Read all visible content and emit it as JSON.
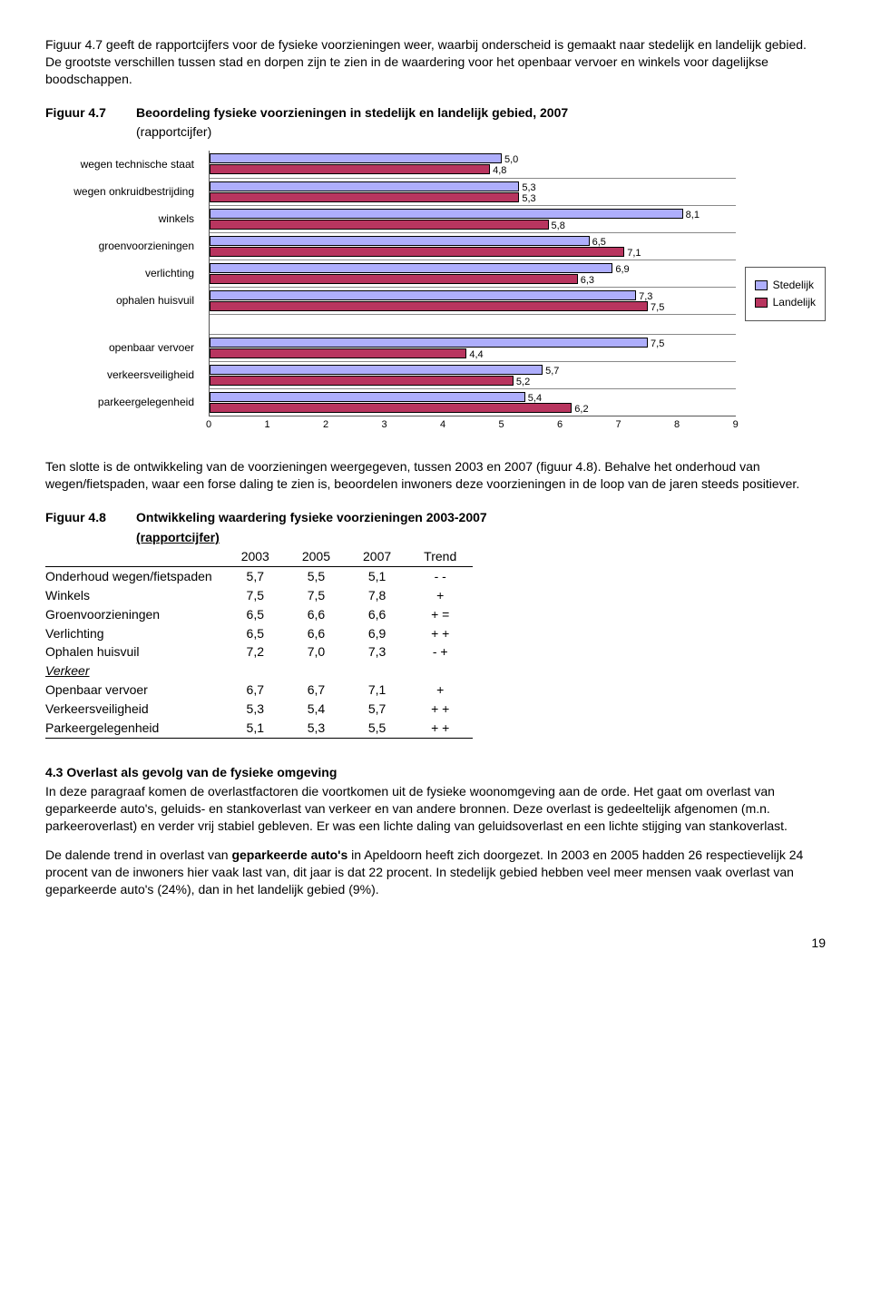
{
  "intro_para": "Figuur 4.7 geeft de rapportcijfers voor de fysieke voorzieningen weer, waarbij onderscheid is gemaakt naar stedelijk en landelijk gebied. De grootste verschillen tussen stad en dorpen zijn te zien in de waardering voor het openbaar vervoer en winkels voor dagelijkse boodschappen.",
  "fig47": {
    "num": "Figuur 4.7",
    "title": "Beoordeling fysieke voorzieningen in stedelijk en landelijk gebied, 2007",
    "sub": "(rapportcijfer)",
    "xmax": 9,
    "xticks": [
      0,
      1,
      2,
      3,
      4,
      5,
      6,
      7,
      8,
      9
    ],
    "colors": {
      "stedelijk": "#aeaefc",
      "landelijk": "#b8355f"
    },
    "legend": {
      "stedelijk": "Stedelijk",
      "landelijk": "Landelijk"
    },
    "group1": [
      {
        "label": "wegen technische staat",
        "s": 5.0,
        "l": 4.8,
        "s_txt": "5,0",
        "l_txt": "4,8"
      },
      {
        "label": "wegen onkruidbestrijding",
        "s": 5.3,
        "l": 5.3,
        "s_txt": "5,3",
        "l_txt": "5,3"
      },
      {
        "label": "winkels",
        "s": 8.1,
        "l": 5.8,
        "s_txt": "8,1",
        "l_txt": "5,8"
      },
      {
        "label": "groenvoorzieningen",
        "s": 6.5,
        "l": 7.1,
        "s_txt": "6,5",
        "l_txt": "7,1"
      },
      {
        "label": "verlichting",
        "s": 6.9,
        "l": 6.3,
        "s_txt": "6,9",
        "l_txt": "6,3"
      },
      {
        "label": "ophalen huisvuil",
        "s": 7.3,
        "l": 7.5,
        "s_txt": "7,3",
        "l_txt": "7,5"
      }
    ],
    "group2": [
      {
        "label": "openbaar vervoer",
        "s": 7.5,
        "l": 4.4,
        "s_txt": "7,5",
        "l_txt": "4,4"
      },
      {
        "label": "verkeersveiligheid",
        "s": 5.7,
        "l": 5.2,
        "s_txt": "5,7",
        "l_txt": "5,2"
      },
      {
        "label": "parkeergelegenheid",
        "s": 5.4,
        "l": 6.2,
        "s_txt": "5,4",
        "l_txt": "6,2"
      }
    ]
  },
  "mid_para": "Ten slotte is de ontwikkeling van de voorzieningen weergegeven, tussen 2003 en 2007 (figuur 4.8). Behalve het onderhoud van wegen/fietspaden, waar een forse daling te zien is, beoordelen inwoners deze voorzieningen in de loop van de jaren steeds positiever.",
  "fig48": {
    "num": "Figuur 4.8",
    "title": "Ontwikkeling waardering fysieke voorzieningen 2003-2007",
    "sub": "(rapportcijfer)",
    "cols": [
      "",
      "2003",
      "2005",
      "2007",
      "Trend"
    ],
    "rows": [
      [
        "Onderhoud wegen/fietspaden",
        "5,7",
        "5,5",
        "5,1",
        "- -"
      ],
      [
        "Winkels",
        "7,5",
        "7,5",
        "7,8",
        "+"
      ],
      [
        "Groenvoorzieningen",
        "6,5",
        "6,6",
        "6,6",
        "+ ="
      ],
      [
        "Verlichting",
        "6,5",
        "6,6",
        "6,9",
        "+ +"
      ],
      [
        "Ophalen huisvuil",
        "7,2",
        "7,0",
        "7,3",
        "- +"
      ]
    ],
    "section_label": "Verkeer",
    "rows2": [
      [
        "Openbaar vervoer",
        "6,7",
        "6,7",
        "7,1",
        "+"
      ],
      [
        "Verkeersveiligheid",
        "5,3",
        "5,4",
        "5,7",
        "+ +"
      ],
      [
        "Parkeergelegenheid",
        "5,1",
        "5,3",
        "5,5",
        "+ +"
      ]
    ]
  },
  "sec43": {
    "head": "4.3 Overlast als gevolg van de fysieke omgeving",
    "p1": "In deze paragraaf komen de overlastfactoren die voortkomen uit de fysieke woonomgeving aan de orde. Het gaat om overlast van geparkeerde auto's, geluids- en stankoverlast van verkeer en van andere bronnen. Deze overlast is gedeeltelijk afgenomen (m.n. parkeeroverlast) en verder vrij stabiel gebleven. Er was een lichte daling van geluidsoverlast en een lichte stijging van stankoverlast.",
    "p2_pre": "De dalende trend in overlast van ",
    "p2_bold": "geparkeerde auto's",
    "p2_post": " in Apeldoorn heeft zich doorgezet. In 2003 en 2005 hadden 26 respectievelijk 24 procent van de inwoners hier vaak last van, dit jaar is dat 22 procent. In stedelijk gebied hebben veel meer mensen vaak overlast van geparkeerde auto's (24%), dan in het landelijk gebied (9%)."
  },
  "pagenum": "19"
}
